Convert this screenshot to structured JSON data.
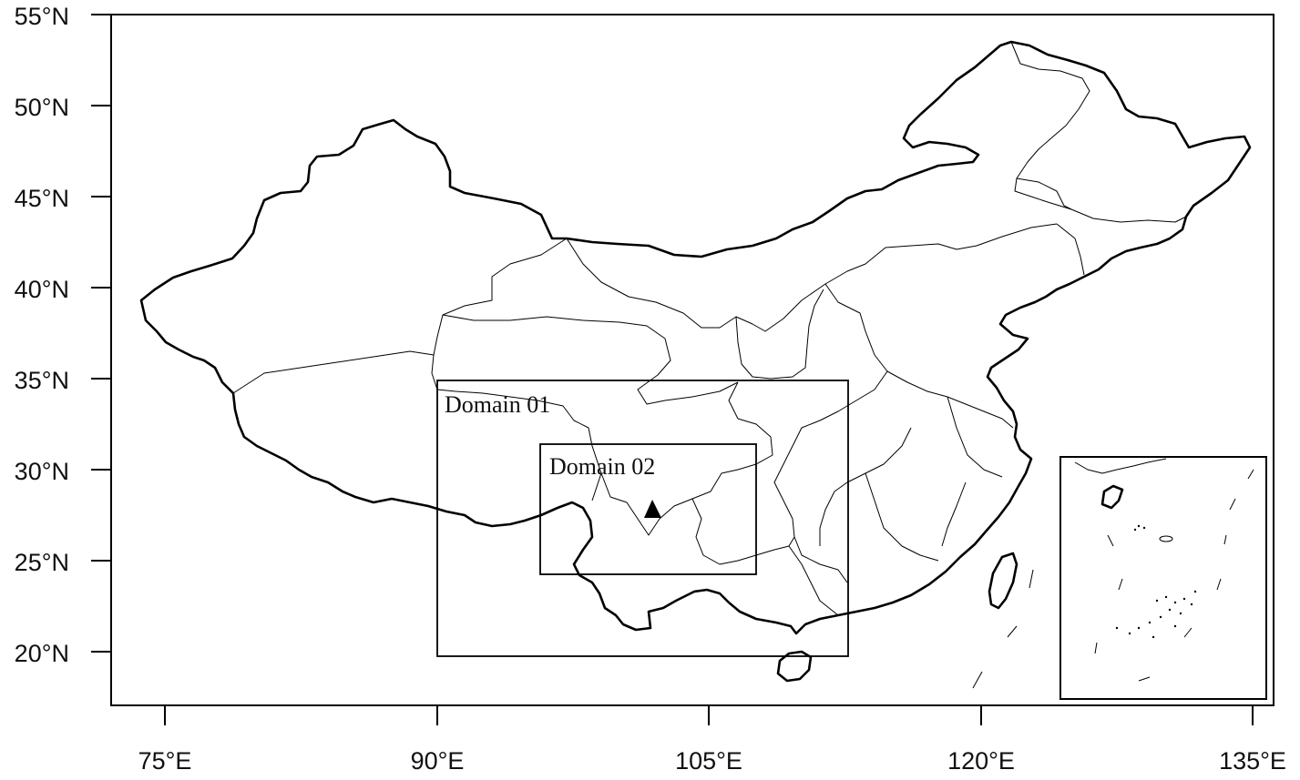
{
  "map": {
    "y_axis_labels": [
      "55°N",
      "50°N",
      "45°N",
      "40°N",
      "35°N",
      "30°N",
      "25°N",
      "20°N"
    ],
    "x_axis_labels": [
      "75°E",
      "90°E",
      "105°E",
      "120°E",
      "135°E"
    ],
    "domains": [
      {
        "label": "Domain 01",
        "lon_range": [
          90,
          112.5
        ],
        "lat_range": [
          19.7,
          34.9
        ]
      },
      {
        "label": "Domain 02",
        "lon_range": [
          95.6,
          107.5
        ],
        "lat_range": [
          24.3,
          31.4
        ]
      }
    ],
    "marker": {
      "type": "triangle",
      "lon": 101.8,
      "lat": 27.8
    },
    "inset": {
      "description_visible": false
    }
  }
}
